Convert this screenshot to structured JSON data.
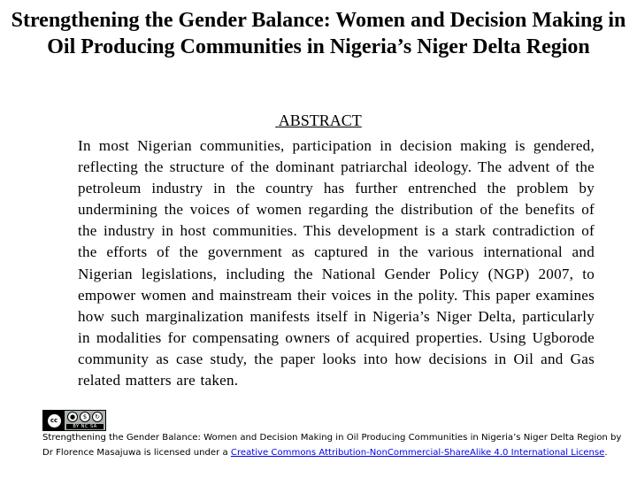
{
  "document": {
    "title": "Strengthening the Gender Balance: Women and Decision Making in Oil Producing Communities in Nigeria’s Niger Delta Region",
    "abstract_heading": "ABSTRACT",
    "abstract_text": "In most Nigerian communities, participation in decision making is gendered, reflecting the structure of the dominant patriarchal ideology. The advent of the petroleum industry in the country has further entrenched the problem by undermining the voices of women regarding the distribution of the benefits of the industry in host communities. This development is a stark contradiction of the efforts of the government as captured in the various international and Nigerian legislations, including the National Gender Policy (NGP) 2007, to empower women and mainstream their voices in the polity. This paper examines how such marginalization manifests itself in Nigeria’s Niger Delta, particularly in modalities for compensating owners of acquired properties. Using Ugborode community as case study, the paper looks into how decisions in Oil and Gas related matters are taken."
  },
  "license": {
    "badge_label": "cc",
    "badge_icons": [
      "person-icon",
      "noncommercial-icon",
      "sharealike-icon"
    ],
    "badge_strip_text": "BY NC SA",
    "work_text": "Strengthening the Gender Balance: Women and Decision Making in Oil Producing Communities in Nigeria’s Niger Delta Region by Dr Florence Masajuwa is licensed under a ",
    "link_text": "Creative Commons Attribution-NonCommercial-ShareAlike 4.0 International License",
    "end_text": ".",
    "link_color": "#0000ee"
  }
}
